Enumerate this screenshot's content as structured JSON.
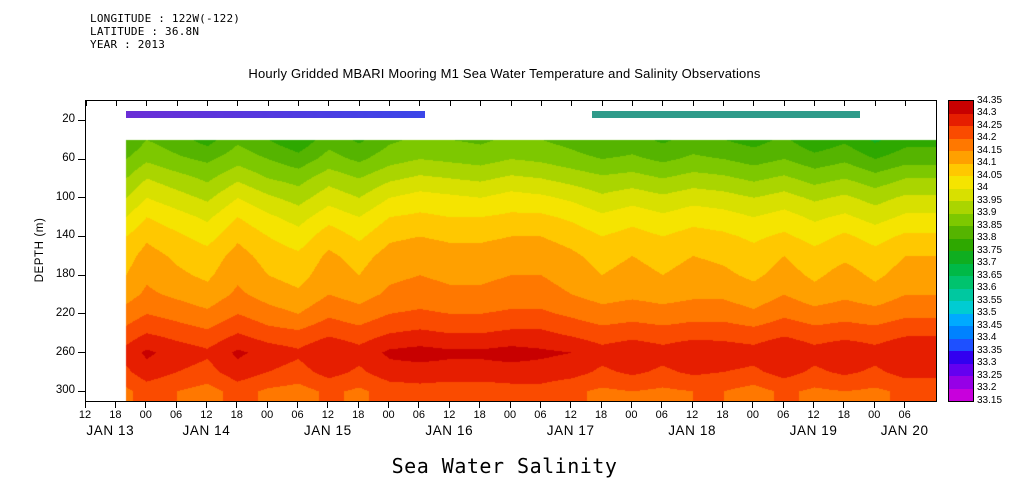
{
  "header": {
    "longitude": "LONGITUDE : 122W(-122)",
    "latitude": "LATITUDE : 36.8N",
    "year": "YEAR : 2013"
  },
  "title": "Hourly Gridded MBARI Mooring M1 Sea Water Temperature and Salinity Observations",
  "footer_title": "Sea Water Salinity",
  "axes": {
    "y_label": "DEPTH (m)",
    "y_ticks": [
      20,
      60,
      100,
      140,
      180,
      220,
      260,
      300
    ],
    "y_domain": [
      0,
      310
    ],
    "x_domain": [
      0,
      168
    ],
    "x_hour_tick_positions": [
      0,
      6,
      12,
      18,
      24,
      30,
      36,
      42,
      48,
      54,
      60,
      66,
      72,
      78,
      84,
      90,
      96,
      102,
      108,
      114,
      120,
      126,
      132,
      138,
      144,
      150,
      156,
      162
    ],
    "x_hour_tick_labels": [
      "12",
      "18",
      "00",
      "06",
      "12",
      "18",
      "00",
      "06",
      "12",
      "18",
      "00",
      "06",
      "12",
      "18",
      "00",
      "06",
      "12",
      "18",
      "00",
      "06",
      "12",
      "18",
      "00",
      "06",
      "12",
      "18",
      "00",
      "06"
    ],
    "x_date_labels": [
      {
        "label": "JAN 13",
        "hour": 5
      },
      {
        "label": "JAN 14",
        "hour": 24
      },
      {
        "label": "JAN 15",
        "hour": 48
      },
      {
        "label": "JAN 16",
        "hour": 72
      },
      {
        "label": "JAN 17",
        "hour": 96
      },
      {
        "label": "JAN 18",
        "hour": 120
      },
      {
        "label": "JAN 19",
        "hour": 144
      },
      {
        "label": "JAN 20",
        "hour": 162
      }
    ]
  },
  "colorbar": {
    "labels_top_to_bottom": [
      "34.35",
      "34.3",
      "34.25",
      "34.2",
      "34.15",
      "34.1",
      "34.05",
      "34",
      "33.95",
      "33.9",
      "33.85",
      "33.8",
      "33.75",
      "33.7",
      "33.65",
      "33.6",
      "33.55",
      "33.5",
      "33.45",
      "33.4",
      "33.35",
      "33.3",
      "33.25",
      "33.2",
      "33.15"
    ],
    "colors_low_to_high": [
      "#c800dc",
      "#9600e6",
      "#6400f0",
      "#3200f0",
      "#1e50ff",
      "#0082ff",
      "#00aaff",
      "#00ccd2",
      "#00c8a0",
      "#00c36e",
      "#00b947",
      "#0fae20",
      "#2ea800",
      "#55b400",
      "#7dc800",
      "#aad500",
      "#d8e000",
      "#f5e400",
      "#ffc800",
      "#ffa000",
      "#ff7800",
      "#fa4b00",
      "#e61e00",
      "#c80000"
    ]
  },
  "coverage_bars": [
    {
      "start_hour": 8,
      "end_hour": 67,
      "colors": [
        "#6a2ed6",
        "#3b46e8"
      ]
    },
    {
      "start_hour": 100,
      "end_hour": 153,
      "colors": [
        "#2f9b8a",
        "#2f9b8a"
      ]
    }
  ],
  "chart_data": {
    "type": "heatmap",
    "title": "Hourly Gridded MBARI Mooring M1 Sea Water Temperature and Salinity Observations",
    "xlabel": "",
    "ylabel": "DEPTH (m)",
    "value_name": "Sea Water Salinity",
    "levels": {
      "min": 33.15,
      "max": 34.35,
      "step": 0.05
    },
    "x_time_start": "JAN 13 2013 12:00",
    "times_hours": [
      8,
      12,
      18,
      24,
      30,
      36,
      42,
      48,
      54,
      60,
      66,
      72,
      78,
      84,
      90,
      96,
      102,
      108,
      114,
      120,
      126,
      132,
      138,
      144,
      150,
      156,
      162
    ],
    "depths_m": [
      40,
      60,
      80,
      100,
      120,
      140,
      160,
      180,
      200,
      220,
      240,
      260,
      280,
      300
    ],
    "values": [
      [
        33.8,
        33.85,
        33.82,
        33.78,
        33.84,
        33.8,
        33.76,
        33.83,
        33.79,
        33.84,
        33.86,
        33.85,
        33.84,
        33.86,
        33.85,
        33.83,
        33.8,
        33.82,
        33.79,
        33.82,
        33.8,
        33.78,
        33.81,
        33.76,
        33.79,
        33.74,
        33.78
      ],
      [
        33.85,
        33.89,
        33.86,
        33.84,
        33.88,
        33.85,
        33.82,
        33.87,
        33.84,
        33.88,
        33.9,
        33.89,
        33.88,
        33.9,
        33.89,
        33.87,
        33.85,
        33.86,
        33.84,
        33.86,
        33.85,
        33.83,
        33.85,
        33.82,
        33.84,
        33.8,
        33.83
      ],
      [
        33.9,
        33.95,
        33.92,
        33.89,
        33.94,
        33.9,
        33.88,
        33.93,
        33.9,
        33.94,
        33.96,
        33.95,
        33.94,
        33.96,
        33.95,
        33.93,
        33.91,
        33.92,
        33.9,
        33.92,
        33.91,
        33.89,
        33.91,
        33.88,
        33.9,
        33.87,
        33.9
      ],
      [
        33.95,
        34.0,
        33.97,
        33.94,
        34.0,
        33.96,
        33.93,
        33.98,
        33.95,
        34.0,
        34.02,
        34.01,
        34.0,
        34.02,
        34.01,
        33.99,
        33.96,
        33.98,
        33.96,
        33.98,
        33.97,
        33.95,
        33.97,
        33.94,
        33.96,
        33.93,
        33.96
      ],
      [
        34.0,
        34.05,
        34.02,
        33.99,
        34.05,
        34.01,
        33.98,
        34.03,
        34.0,
        34.05,
        34.06,
        34.05,
        34.05,
        34.06,
        34.06,
        34.04,
        34.01,
        34.03,
        34.01,
        34.03,
        34.02,
        34.0,
        34.02,
        33.99,
        34.01,
        33.98,
        34.01
      ],
      [
        34.05,
        34.09,
        34.06,
        34.03,
        34.09,
        34.05,
        34.02,
        34.08,
        34.04,
        34.09,
        34.1,
        34.09,
        34.09,
        34.1,
        34.1,
        34.08,
        34.05,
        34.07,
        34.05,
        34.07,
        34.06,
        34.04,
        34.06,
        34.03,
        34.06,
        34.03,
        34.06
      ],
      [
        34.08,
        34.12,
        34.09,
        34.07,
        34.12,
        34.08,
        34.06,
        34.11,
        34.08,
        34.12,
        34.13,
        34.12,
        34.12,
        34.13,
        34.13,
        34.11,
        34.08,
        34.1,
        34.08,
        34.1,
        34.09,
        34.07,
        34.1,
        34.07,
        34.09,
        34.07,
        34.1
      ],
      [
        34.1,
        34.14,
        34.11,
        34.09,
        34.14,
        34.1,
        34.08,
        34.13,
        34.1,
        34.14,
        34.15,
        34.14,
        34.14,
        34.15,
        34.15,
        34.13,
        34.1,
        34.12,
        34.1,
        34.12,
        34.11,
        34.09,
        34.12,
        34.09,
        34.12,
        34.09,
        34.12
      ],
      [
        34.13,
        34.16,
        34.14,
        34.12,
        34.16,
        34.13,
        34.11,
        34.15,
        34.13,
        34.16,
        34.17,
        34.16,
        34.16,
        34.17,
        34.17,
        34.15,
        34.13,
        34.14,
        34.13,
        34.14,
        34.14,
        34.12,
        34.15,
        34.12,
        34.14,
        34.12,
        34.15
      ],
      [
        34.17,
        34.2,
        34.18,
        34.16,
        34.2,
        34.17,
        34.15,
        34.19,
        34.17,
        34.2,
        34.21,
        34.2,
        34.2,
        34.21,
        34.21,
        34.19,
        34.17,
        34.18,
        34.17,
        34.18,
        34.18,
        34.16,
        34.19,
        34.17,
        34.18,
        34.17,
        34.19
      ],
      [
        34.22,
        34.25,
        34.23,
        34.21,
        34.25,
        34.22,
        34.21,
        34.24,
        34.22,
        34.25,
        34.26,
        34.25,
        34.25,
        34.26,
        34.26,
        34.24,
        34.22,
        34.23,
        34.22,
        34.23,
        34.23,
        34.22,
        34.24,
        34.22,
        34.23,
        34.22,
        34.24
      ],
      [
        34.27,
        34.31,
        34.28,
        34.26,
        34.31,
        34.28,
        34.26,
        34.3,
        34.27,
        34.31,
        34.32,
        34.31,
        34.31,
        34.32,
        34.31,
        34.3,
        34.27,
        34.29,
        34.27,
        34.29,
        34.28,
        34.27,
        34.3,
        34.27,
        34.29,
        34.27,
        34.3
      ],
      [
        34.24,
        34.28,
        34.25,
        34.23,
        34.28,
        34.25,
        34.23,
        34.27,
        34.24,
        34.28,
        34.28,
        34.28,
        34.28,
        34.28,
        34.28,
        34.27,
        34.24,
        34.26,
        34.24,
        34.26,
        34.25,
        34.24,
        34.27,
        34.24,
        34.26,
        34.24,
        34.27
      ],
      [
        34.19,
        34.22,
        34.2,
        34.18,
        34.22,
        34.19,
        34.18,
        34.21,
        34.19,
        34.22,
        34.23,
        34.22,
        34.22,
        34.23,
        34.23,
        34.21,
        34.19,
        34.2,
        34.19,
        34.2,
        34.2,
        34.18,
        34.21,
        34.19,
        34.2,
        34.19,
        34.21
      ]
    ]
  }
}
